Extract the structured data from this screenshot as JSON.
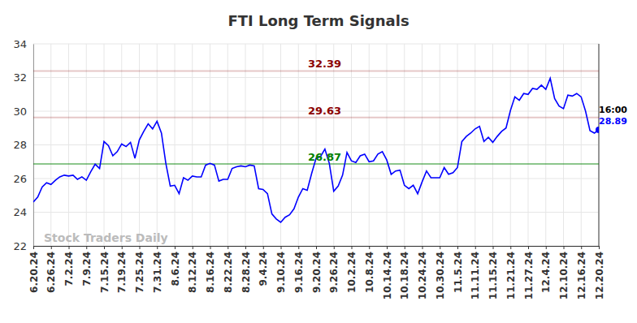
{
  "chart_data": {
    "type": "line",
    "title": "FTI Long Term Signals",
    "categories": [
      "6.20.24",
      null,
      null,
      null,
      "6.26.24",
      null,
      null,
      null,
      "7.2.24",
      null,
      null,
      null,
      "7.9.24",
      null,
      null,
      null,
      "7.15.24",
      null,
      null,
      null,
      "7.19.24",
      null,
      null,
      null,
      "7.25.24",
      null,
      null,
      null,
      "7.31.24",
      null,
      null,
      null,
      "8.6.24",
      null,
      null,
      null,
      "8.12.24",
      null,
      null,
      null,
      "8.16.24",
      null,
      null,
      null,
      "8.22.24",
      null,
      null,
      null,
      "8.28.24",
      null,
      null,
      null,
      "9.4.24",
      null,
      null,
      null,
      "9.10.24",
      null,
      null,
      null,
      "9.16.24",
      null,
      null,
      null,
      "9.20.24",
      null,
      null,
      null,
      "9.26.24",
      null,
      null,
      null,
      "10.2.24",
      null,
      null,
      null,
      "10.8.24",
      null,
      null,
      null,
      "10.14.24",
      null,
      null,
      null,
      "10.18.24",
      null,
      null,
      null,
      "10.24.24",
      null,
      null,
      null,
      "10.30.24",
      null,
      null,
      null,
      "11.5.24",
      null,
      null,
      null,
      "11.11.24",
      null,
      null,
      null,
      "11.15.24",
      null,
      null,
      null,
      "11.21.24",
      null,
      null,
      null,
      "11.27.24",
      null,
      null,
      null,
      "12.4.24",
      null,
      null,
      null,
      "12.10.24",
      null,
      null,
      null,
      "12.16.24",
      null,
      null,
      null,
      "12.20.24"
    ],
    "values": [
      24.6,
      24.9,
      25.5,
      25.75,
      25.65,
      25.9,
      26.1,
      26.2,
      26.15,
      26.2,
      25.95,
      26.1,
      25.9,
      26.4,
      26.85,
      26.6,
      28.2,
      27.95,
      27.35,
      27.6,
      28.05,
      27.9,
      28.15,
      27.2,
      28.3,
      28.8,
      29.25,
      28.95,
      29.4,
      28.7,
      26.9,
      25.55,
      25.6,
      25.1,
      26.05,
      25.9,
      26.15,
      26.1,
      26.1,
      26.8,
      26.9,
      26.8,
      25.85,
      25.95,
      25.95,
      26.6,
      26.7,
      26.75,
      26.7,
      26.8,
      26.75,
      25.4,
      25.35,
      25.1,
      23.9,
      23.6,
      23.4,
      23.7,
      23.85,
      24.2,
      24.9,
      25.4,
      25.3,
      26.3,
      27.2,
      27.3,
      27.75,
      26.9,
      25.25,
      25.55,
      26.2,
      27.55,
      27.05,
      26.95,
      27.35,
      27.45,
      27.0,
      27.05,
      27.45,
      27.6,
      27.1,
      26.25,
      26.45,
      26.5,
      25.6,
      25.4,
      25.6,
      25.1,
      25.8,
      26.45,
      26.05,
      26.05,
      26.05,
      26.65,
      26.25,
      26.35,
      26.65,
      28.2,
      28.5,
      28.7,
      28.95,
      29.1,
      28.2,
      28.45,
      28.15,
      28.5,
      28.8,
      29.0,
      30.05,
      30.85,
      30.65,
      31.05,
      31.0,
      31.35,
      31.3,
      31.55,
      31.3,
      31.95,
      30.75,
      30.3,
      30.15,
      30.95,
      30.9,
      31.05,
      30.85,
      30.0,
      28.85,
      28.7,
      28.89
    ],
    "color": "#0000ff",
    "ylim": [
      22,
      34
    ],
    "yticks": [
      22,
      24,
      26,
      28,
      30,
      32,
      34
    ],
    "grid": true,
    "reference_lines": [
      {
        "value": 32.39,
        "color": "#8b0000"
      },
      {
        "value": 29.63,
        "color": "#8b0000"
      },
      {
        "value": 26.87,
        "color": "#008000"
      }
    ],
    "last_time": "16:00",
    "watermark": "Stock Traders Daily"
  }
}
